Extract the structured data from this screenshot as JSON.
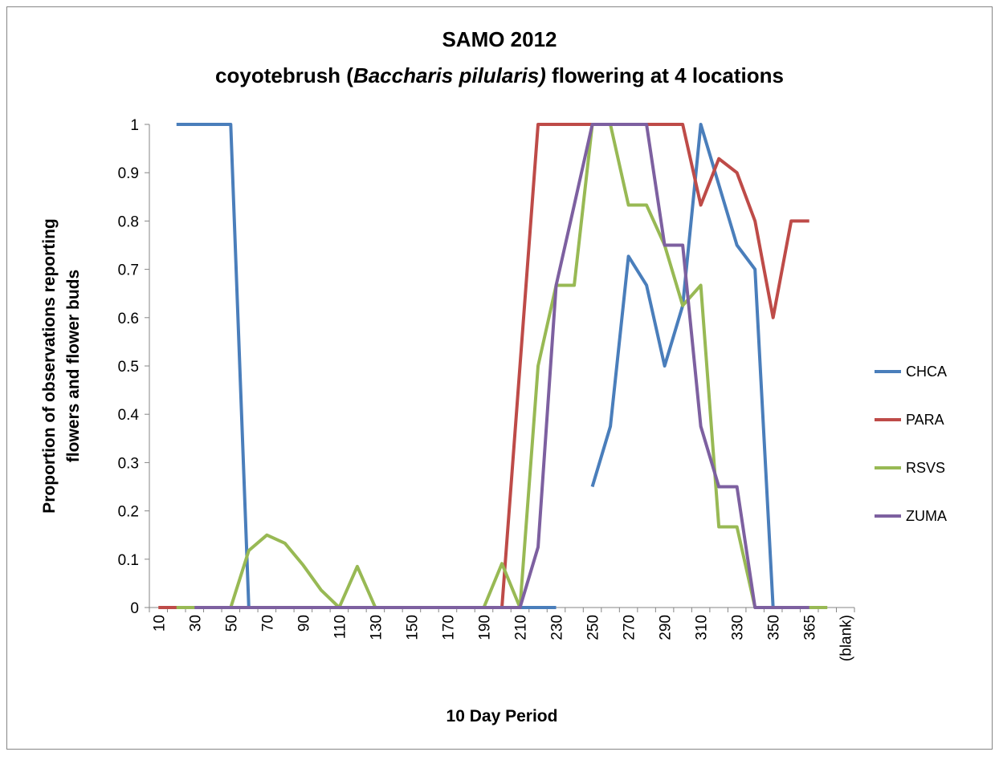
{
  "chart_data": {
    "type": "line",
    "title": [
      "SAMO 2012",
      [
        "coyotebrush (",
        "Baccharis pilularis)",
        " flowering at 4 locations"
      ]
    ],
    "ylabel": [
      "Proportion of observations reporting",
      "flowers and flower buds"
    ],
    "xlabel": "10 Day Period",
    "categories": [
      10,
      null,
      30,
      null,
      50,
      null,
      70,
      null,
      90,
      null,
      110,
      null,
      130,
      null,
      150,
      null,
      170,
      null,
      190,
      null,
      210,
      null,
      230,
      null,
      250,
      null,
      270,
      null,
      290,
      null,
      310,
      null,
      330,
      null,
      350,
      null,
      365,
      null,
      "(blank)"
    ],
    "ylim": [
      0,
      1
    ],
    "yticks": [
      0,
      0.1,
      0.2,
      0.3,
      0.4,
      0.5,
      0.6,
      0.7,
      0.8,
      0.9,
      1
    ],
    "legend": "right",
    "series": [
      {
        "name": "CHCA",
        "color": "#4a7ebb",
        "values": [
          null,
          1,
          1,
          1,
          1,
          0,
          0,
          0,
          0,
          0,
          0,
          0,
          0,
          0,
          0,
          0,
          0,
          0,
          0,
          0,
          0,
          0,
          0,
          null,
          0.25,
          0.375,
          0.727,
          0.667,
          0.5,
          0.625,
          1,
          0.875,
          0.75,
          0.7,
          0,
          0,
          0,
          null,
          null
        ]
      },
      {
        "name": "PARA",
        "color": "#be4b48",
        "values": [
          0,
          0,
          0,
          0,
          0,
          0,
          0,
          0,
          0,
          0,
          0,
          0,
          0,
          0,
          0,
          0,
          0,
          0,
          0,
          0,
          0.5,
          1,
          1,
          1,
          1,
          1,
          1,
          1,
          1,
          1,
          0.833,
          0.929,
          0.9,
          0.8,
          0.6,
          0.8,
          0.8,
          null,
          null
        ]
      },
      {
        "name": "RSVS",
        "color": "#98b954",
        "values": [
          null,
          0,
          0,
          0,
          0,
          0.118,
          0.15,
          0.133,
          0.088,
          0.036,
          0,
          0.085,
          0,
          0,
          0,
          0,
          0,
          0,
          0,
          0.091,
          0,
          0.5,
          0.667,
          0.667,
          1,
          1,
          0.833,
          0.833,
          0.75,
          0.625,
          0.667,
          0.167,
          0.167,
          0,
          0,
          0,
          0,
          0,
          null
        ]
      },
      {
        "name": "ZUMA",
        "color": "#7d60a0",
        "values": [
          null,
          null,
          0,
          0,
          0,
          0,
          0,
          0,
          0,
          0,
          0,
          0,
          0,
          0,
          0,
          0,
          0,
          0,
          0,
          0,
          0,
          0.125,
          0.667,
          0.833,
          1,
          1,
          1,
          1,
          0.75,
          0.75,
          0.375,
          0.25,
          0.25,
          0,
          0,
          0,
          0,
          null,
          null
        ]
      }
    ]
  }
}
